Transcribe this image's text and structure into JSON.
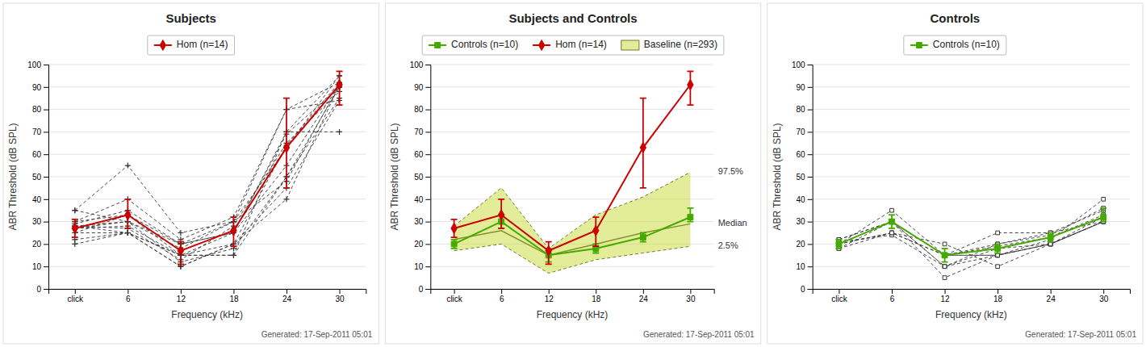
{
  "chart_data": [
    {
      "type": "line",
      "title": "Subjects",
      "categories": [
        "click",
        "6",
        "12",
        "18",
        "24",
        "30"
      ],
      "xlabel": "Frequency (kHz)",
      "ylabel": "ABR Threshold (dB SPL)",
      "ylim": [
        0,
        100
      ],
      "yticks": [
        0,
        10,
        20,
        30,
        40,
        50,
        60,
        70,
        80,
        90,
        100
      ],
      "grid": true,
      "legend": "top",
      "footer": "Generated: 17-Sep-2011 05:01",
      "series": [
        {
          "color": "#333333",
          "line_style": "dashed",
          "marker": "plus",
          "values": [
            28,
            25,
            15,
            15,
            50,
            85
          ]
        },
        {
          "color": "#333333",
          "line_style": "dashed",
          "marker": "plus",
          "values": [
            30,
            33,
            20,
            25,
            69,
            90
          ]
        },
        {
          "color": "#333333",
          "line_style": "dashed",
          "marker": "plus",
          "values": [
            25,
            25,
            10,
            20,
            45,
            84
          ]
        },
        {
          "color": "#333333",
          "line_style": "dashed",
          "marker": "plus",
          "values": [
            27,
            28,
            15,
            20,
            64,
            92
          ]
        },
        {
          "color": "#333333",
          "line_style": "dashed",
          "marker": "plus",
          "values": [
            20,
            25,
            15,
            15,
            70,
            95
          ]
        },
        {
          "color": "#333333",
          "line_style": "dashed",
          "marker": "plus",
          "values": [
            35,
            30,
            18,
            30,
            48,
            91
          ]
        },
        {
          "color": "#333333",
          "line_style": "dashed",
          "marker": "plus",
          "values": [
            28,
            27,
            13,
            28,
            65,
            88
          ]
        },
        {
          "color": "#333333",
          "line_style": "dashed",
          "marker": "plus",
          "values": [
            30,
            40,
            22,
            32,
            80,
            92
          ]
        },
        {
          "color": "#333333",
          "line_style": "dashed",
          "marker": "plus",
          "values": [
            25,
            33,
            15,
            25,
            55,
            91
          ]
        },
        {
          "color": "#333333",
          "line_style": "dashed",
          "marker": "plus",
          "values": [
            27,
            30,
            12,
            18,
            50,
            90
          ]
        },
        {
          "color": "#333333",
          "line_style": "dashed",
          "marker": "plus",
          "values": [
            29,
            35,
            20,
            30,
            63,
            95
          ]
        },
        {
          "color": "#333333",
          "line_style": "dashed",
          "marker": "plus",
          "values": [
            28,
            30,
            20,
            25,
            70,
            70
          ]
        },
        {
          "color": "#333333",
          "line_style": "dashed",
          "marker": "plus",
          "values": [
            22,
            25,
            10,
            20,
            40,
            91
          ]
        },
        {
          "color": "#333333",
          "line_style": "dashed",
          "marker": "plus",
          "values": [
            35,
            55,
            25,
            30,
            80,
            84
          ]
        },
        {
          "name": "Hom (n=14)",
          "color": "#cc0000",
          "line_style": "solid",
          "marker": "diamond",
          "values": [
            27,
            33,
            17,
            26,
            63,
            91
          ],
          "error_lower": [
            4,
            6,
            6,
            7,
            18,
            9
          ],
          "error_upper": [
            4,
            7,
            4,
            6,
            22,
            6
          ]
        }
      ]
    },
    {
      "type": "line",
      "title": "Subjects and Controls",
      "categories": [
        "click",
        "6",
        "12",
        "18",
        "24",
        "30"
      ],
      "xlabel": "Frequency (kHz)",
      "ylabel": "ABR Threshold (dB SPL)",
      "ylim": [
        0,
        100
      ],
      "yticks": [
        0,
        10,
        20,
        30,
        40,
        50,
        60,
        70,
        80,
        90,
        100
      ],
      "grid": true,
      "legend": "top",
      "footer": "Generated: 17-Sep-2011 05:01",
      "series": [
        {
          "name": "Controls (n=10)",
          "color": "#44aa00",
          "line_style": "solid",
          "marker": "square",
          "values": [
            20,
            30,
            15,
            18,
            23,
            32
          ],
          "error_lower": [
            2,
            3,
            3,
            2,
            2,
            2
          ],
          "error_upper": [
            2,
            3,
            3,
            2,
            2,
            4
          ]
        },
        {
          "name": "Hom (n=14)",
          "color": "#cc0000",
          "line_style": "solid",
          "marker": "diamond",
          "values": [
            27,
            33,
            17,
            26,
            63,
            91
          ],
          "error_lower": [
            4,
            6,
            6,
            7,
            18,
            9
          ],
          "error_upper": [
            4,
            7,
            4,
            6,
            22,
            6
          ]
        },
        {
          "name": "Baseline (n=293)",
          "type": "band",
          "color": "#ccdd44",
          "values": [
            22,
            26,
            15,
            20,
            25,
            29
          ],
          "median_label": "Median",
          "lower": [
            17,
            20,
            7,
            13,
            16,
            19
          ],
          "lower_label": "2.5%",
          "upper": [
            28,
            45,
            18,
            33,
            41,
            52
          ],
          "upper_label": "97.5%"
        }
      ]
    },
    {
      "type": "line",
      "title": "Controls",
      "categories": [
        "click",
        "6",
        "12",
        "18",
        "24",
        "30"
      ],
      "xlabel": "Frequency (kHz)",
      "ylabel": "ABR Threshold (dB SPL)",
      "ylim": [
        0,
        100
      ],
      "yticks": [
        0,
        10,
        20,
        30,
        40,
        50,
        60,
        70,
        80,
        90,
        100
      ],
      "grid": true,
      "legend": "top",
      "footer": "Generated: 17-Sep-2011 05:01",
      "series": [
        {
          "color": "#333333",
          "line_style": "dashed",
          "marker": "open-square",
          "values": [
            20,
            25,
            15,
            15,
            20,
            30
          ]
        },
        {
          "color": "#333333",
          "line_style": "dashed",
          "marker": "open-square",
          "values": [
            22,
            30,
            10,
            20,
            25,
            35
          ]
        },
        {
          "color": "#333333",
          "line_style": "dashed",
          "marker": "open-square",
          "values": [
            18,
            30,
            10,
            15,
            20,
            30
          ]
        },
        {
          "color": "#333333",
          "line_style": "dashed",
          "marker": "open-square",
          "values": [
            20,
            35,
            15,
            20,
            24,
            36
          ]
        },
        {
          "color": "#333333",
          "line_style": "dashed",
          "marker": "open-square",
          "values": [
            20,
            30,
            15,
            15,
            20,
            30
          ]
        },
        {
          "color": "#333333",
          "line_style": "dashed",
          "marker": "open-square",
          "values": [
            21,
            24,
            10,
            18,
            20,
            30
          ]
        },
        {
          "color": "#333333",
          "line_style": "dashed",
          "marker": "open-square",
          "values": [
            20,
            30,
            15,
            19,
            23,
            33
          ]
        },
        {
          "color": "#333333",
          "line_style": "dashed",
          "marker": "open-square",
          "values": [
            22,
            30,
            5,
            15,
            22,
            40
          ]
        },
        {
          "color": "#333333",
          "line_style": "dashed",
          "marker": "open-square",
          "values": [
            20,
            25,
            15,
            25,
            25,
            30
          ]
        },
        {
          "color": "#333333",
          "line_style": "dashed",
          "marker": "open-square",
          "values": [
            18,
            25,
            20,
            10,
            20,
            32
          ]
        },
        {
          "name": "Controls (n=10)",
          "color": "#44aa00",
          "line_style": "solid",
          "marker": "square",
          "values": [
            20,
            30,
            15,
            18,
            23,
            32
          ],
          "error_lower": [
            2,
            3,
            3,
            2,
            2,
            2
          ],
          "error_upper": [
            2,
            3,
            3,
            2,
            2,
            4
          ]
        }
      ]
    }
  ]
}
